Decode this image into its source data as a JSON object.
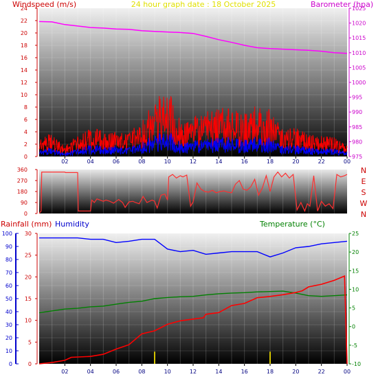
{
  "header": {
    "left_label": "Windspeed (m/s)",
    "title": "24 hour graph date : 18 October 2025",
    "right_label": "Barometer (hpa)"
  },
  "colors": {
    "wind_gust": "#ff0000",
    "wind_avg": "#0000ff",
    "barometer": "#ff00ff",
    "direction": "#ff3030",
    "humidity": "#0000ff",
    "temperature": "#008000",
    "rainfall": "#ff0000",
    "rain_rate_bar": "#d4c400",
    "title": "#e0e000"
  },
  "time_ticks": [
    "02",
    "04",
    "06",
    "08",
    "10",
    "12",
    "14",
    "16",
    "18",
    "20",
    "22",
    "00"
  ],
  "chart_data": [
    {
      "id": "wind_baro",
      "type": "line",
      "x_label": "",
      "x_range_hours": [
        0,
        24
      ],
      "left_axis": {
        "label": "Windspeed (m/s)",
        "ticks": [
          0,
          2,
          4,
          6,
          8,
          10,
          12,
          14,
          16,
          18,
          20,
          22,
          24
        ],
        "ylim": [
          0,
          24
        ]
      },
      "right_axis": {
        "label": "Barometer (hpa)",
        "ticks": [
          975,
          980,
          985,
          990,
          995,
          1000,
          1005,
          1010,
          1015,
          1020,
          1025
        ],
        "ylim": [
          975,
          1025
        ]
      },
      "series": [
        {
          "name": "Barometer",
          "axis": "right",
          "x": [
            0,
            1,
            2,
            3,
            4,
            5,
            6,
            7,
            8,
            9,
            10,
            11,
            12,
            13,
            14,
            15,
            16,
            17,
            18,
            19,
            20,
            21,
            22,
            23,
            24
          ],
          "y": [
            1020.5,
            1020.4,
            1019.5,
            1019.0,
            1018.5,
            1018.3,
            1018.0,
            1017.9,
            1017.4,
            1017.2,
            1017.0,
            1016.8,
            1016.5,
            1015.5,
            1014.4,
            1013.5,
            1012.5,
            1011.7,
            1011.4,
            1011.2,
            1011.0,
            1010.8,
            1010.5,
            1010.0,
            1009.8
          ]
        },
        {
          "name": "Gust",
          "axis": "left",
          "x": [
            0,
            1,
            2,
            3,
            4,
            5,
            6,
            7,
            8,
            9,
            10,
            11,
            12,
            13,
            14,
            15,
            16,
            17,
            18,
            19,
            20,
            21,
            22,
            23,
            24
          ],
          "y": [
            2.6,
            2.8,
            1.3,
            2.8,
            3.4,
            3.2,
            3.1,
            2.8,
            4.5,
            6.5,
            8.6,
            4.5,
            4.8,
            5.5,
            5.9,
            6.2,
            5.2,
            6.6,
            5.6,
            3.2,
            3.5,
            2.6,
            2.8,
            2.4,
            1.4
          ]
        },
        {
          "name": "Average",
          "axis": "left",
          "x": [
            0,
            1,
            2,
            3,
            4,
            5,
            6,
            7,
            8,
            9,
            10,
            11,
            12,
            13,
            14,
            15,
            16,
            17,
            18,
            19,
            20,
            21,
            22,
            23,
            24
          ],
          "y": [
            0.9,
            1.0,
            0.4,
            1.0,
            1.3,
            1.2,
            1.2,
            1.0,
            1.7,
            2.4,
            3.0,
            1.7,
            1.8,
            2.0,
            2.2,
            2.3,
            1.9,
            2.4,
            2.1,
            1.2,
            1.3,
            1.0,
            1.0,
            0.9,
            0.5
          ]
        }
      ]
    },
    {
      "id": "direction",
      "type": "line",
      "x_range_hours": [
        0,
        24
      ],
      "left_axis": {
        "label": "",
        "ticks": [
          0,
          90,
          180,
          270,
          360
        ],
        "ylim": [
          0,
          360
        ]
      },
      "right_axis": {
        "label": "",
        "ticks": [
          "N",
          "W",
          "S",
          "E",
          "N"
        ],
        "ylim": [
          0,
          360
        ]
      },
      "series": [
        {
          "name": "Wind direction",
          "axis": "left",
          "x": [
            0,
            0.15,
            0.2,
            1.0,
            1.05,
            2.0,
            2.05,
            3.0,
            3.05,
            4.0,
            4.1,
            4.3,
            4.5,
            5.0,
            5.2,
            5.5,
            5.8,
            6.0,
            6.2,
            6.5,
            6.7,
            7.0,
            7.3,
            7.5,
            7.8,
            8.0,
            8.1,
            8.4,
            8.8,
            9.0,
            9.2,
            9.5,
            9.8,
            10.0,
            10.1,
            10.4,
            10.7,
            11.0,
            11.2,
            11.5,
            11.8,
            12.0,
            12.3,
            12.6,
            12.9,
            13.2,
            13.5,
            13.8,
            14.1,
            14.4,
            14.7,
            15.0,
            15.3,
            15.6,
            15.9,
            16.2,
            16.5,
            16.8,
            17.1,
            17.4,
            17.7,
            18.0,
            18.3,
            18.6,
            18.9,
            19.2,
            19.5,
            19.8,
            20.1,
            20.4,
            20.7,
            20.9,
            21.1,
            21.4,
            21.7,
            22.0,
            22.3,
            22.6,
            22.9,
            23.2,
            23.5,
            23.8,
            24.0
          ],
          "y": [
            0,
            20,
            340,
            340,
            340,
            340,
            335,
            335,
            20,
            20,
            110,
            90,
            120,
            100,
            110,
            100,
            85,
            100,
            115,
            90,
            50,
            95,
            100,
            90,
            80,
            120,
            140,
            90,
            110,
            100,
            45,
            150,
            160,
            110,
            300,
            320,
            290,
            310,
            300,
            315,
            60,
            95,
            250,
            200,
            180,
            175,
            190,
            170,
            180,
            185,
            175,
            170,
            240,
            270,
            200,
            190,
            220,
            280,
            150,
            210,
            310,
            180,
            300,
            340,
            300,
            330,
            290,
            320,
            30,
            90,
            20,
            80,
            60,
            310,
            20,
            100,
            60,
            80,
            40,
            320,
            300,
            310,
            320
          ]
        }
      ]
    },
    {
      "id": "rain_hum_temp",
      "type": "line",
      "x_range_hours": [
        0,
        24
      ],
      "axes": [
        {
          "label": "Humidity",
          "ticks": [
            0,
            10,
            20,
            30,
            40,
            50,
            60,
            70,
            80,
            90,
            100
          ],
          "ylim": [
            0,
            100
          ]
        },
        {
          "label": "Rainfall (mm)",
          "ticks": [
            0,
            5,
            10,
            15,
            20,
            25,
            30
          ],
          "ylim": [
            0,
            30
          ]
        },
        {
          "label": "Temperature (°C)",
          "ticks": [
            -10,
            -5,
            0,
            5,
            10,
            15,
            20,
            25
          ],
          "ylim": [
            -10,
            25
          ]
        }
      ],
      "series": [
        {
          "name": "Humidity",
          "axis": "Humidity",
          "x": [
            0,
            1,
            2,
            3,
            4,
            5,
            6,
            7,
            8,
            9,
            10,
            11,
            12,
            13,
            14,
            15,
            16,
            17,
            18,
            19,
            20,
            21,
            22,
            23,
            24
          ],
          "y": [
            96.5,
            96.5,
            96.5,
            96.5,
            95.5,
            95.5,
            93,
            94,
            95.5,
            95.5,
            88,
            86,
            87,
            84,
            85,
            86,
            86,
            86,
            82,
            85,
            89,
            90,
            92,
            93,
            94
          ]
        },
        {
          "name": "Temperature",
          "axis": "Temperature (°C)",
          "x": [
            0,
            1,
            2,
            3,
            4,
            5,
            6,
            7,
            8,
            9,
            10,
            11,
            12,
            13,
            14,
            15,
            16,
            17,
            18,
            19,
            20,
            21,
            22,
            23,
            24
          ],
          "y": [
            3.7,
            4.2,
            4.7,
            4.9,
            5.3,
            5.5,
            6.0,
            6.5,
            6.8,
            7.5,
            7.8,
            8.0,
            8.1,
            8.5,
            8.8,
            9.0,
            9.1,
            9.3,
            9.4,
            9.5,
            9.0,
            8.3,
            8.1,
            8.3,
            8.5
          ]
        },
        {
          "name": "Rainfall",
          "axis": "Rainfall (mm)",
          "x": [
            0,
            1,
            2,
            2.5,
            4,
            5,
            6,
            7,
            8,
            9,
            10,
            11,
            12,
            12.8,
            13,
            14,
            15,
            16,
            17,
            18,
            19,
            20,
            20.5,
            21,
            22,
            23,
            23.8,
            24
          ],
          "y": [
            0,
            0.3,
            0.8,
            1.5,
            1.7,
            2.2,
            3.4,
            4.4,
            6.9,
            7.6,
            9.1,
            9.9,
            10.3,
            10.6,
            11.4,
            11.8,
            13.4,
            13.9,
            15.2,
            15.5,
            15.9,
            16.4,
            16.8,
            17.7,
            18.3,
            19.2,
            20.2,
            0
          ]
        },
        {
          "name": "Rain rate",
          "axis": "Rainfall (mm)",
          "type": "bar",
          "x": [
            9.0,
            18.0
          ],
          "y": [
            2.8,
            2.8
          ]
        }
      ]
    }
  ],
  "panels": {
    "rain_label": "Rainfall (mm)",
    "humidity_label": "Humidity",
    "temp_label": "Temperature (°C)"
  }
}
